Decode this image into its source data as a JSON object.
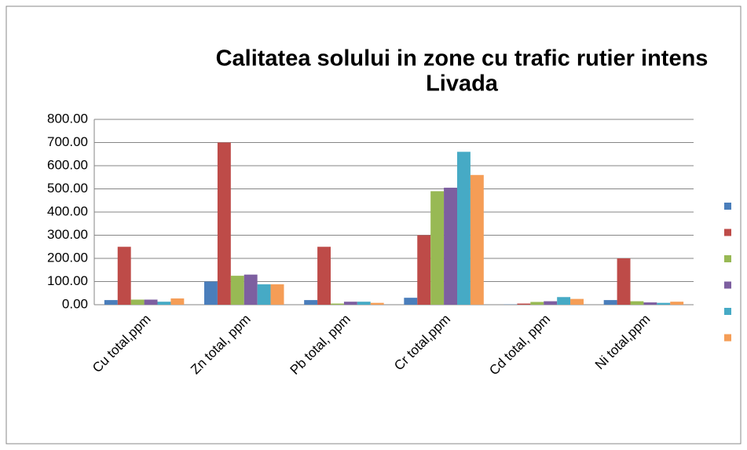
{
  "chart_data": {
    "type": "bar",
    "title_lines": [
      "Calitatea solului in zone cu trafic rutier intens",
      "Livada"
    ],
    "categories": [
      "Cu total,ppm",
      "Zn total, ppm",
      "Pb total, ppm",
      "Cr total,ppm",
      "Cd total, ppm",
      "Ni total,ppm"
    ],
    "series": [
      {
        "color": "#4a7ebb",
        "values": [
          20,
          100,
          20,
          30,
          1,
          20
        ]
      },
      {
        "color": "#be4b48",
        "values": [
          250,
          700,
          250,
          300,
          5,
          200
        ]
      },
      {
        "color": "#98b954",
        "values": [
          22,
          125,
          5,
          490,
          12,
          15
        ]
      },
      {
        "color": "#7d5fa0",
        "values": [
          22,
          130,
          13,
          505,
          15,
          10
        ]
      },
      {
        "color": "#46aac5",
        "values": [
          13,
          88,
          13,
          660,
          33,
          8
        ]
      },
      {
        "color": "#f59d56",
        "values": [
          27,
          88,
          8,
          560,
          25,
          13
        ]
      }
    ],
    "ylim": [
      0,
      800
    ],
    "yticks": [
      {
        "value": 0,
        "label": "0.00"
      },
      {
        "value": 100,
        "label": "100.00"
      },
      {
        "value": 200,
        "label": "200.00"
      },
      {
        "value": 300,
        "label": "300.00"
      },
      {
        "value": 400,
        "label": "400.00"
      },
      {
        "value": 500,
        "label": "500.00"
      },
      {
        "value": 600,
        "label": "600.00"
      },
      {
        "value": 700,
        "label": "700.00"
      },
      {
        "value": 800,
        "label": "800.00"
      }
    ],
    "grid": true,
    "legend": "right"
  }
}
